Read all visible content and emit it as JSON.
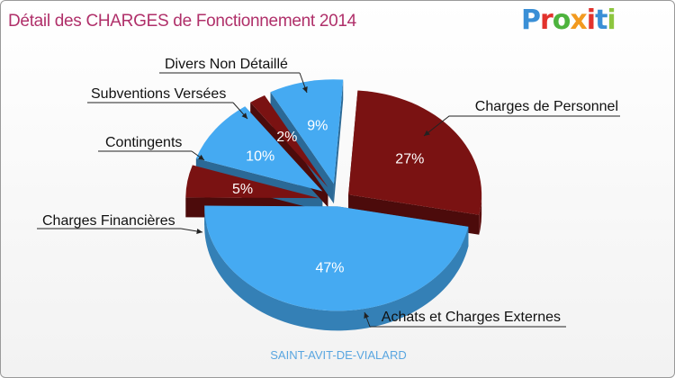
{
  "title": "Détail des CHARGES de Fonctionnement 2014",
  "logo": {
    "text": "Proxiti",
    "letter_colors": [
      "#3a8fd6",
      "#e2322c",
      "#4db33d",
      "#f29a1f",
      "#e2322c",
      "#3a8fd6",
      "#8dc63f"
    ]
  },
  "town": "SAINT-AVIT-DE-VIALARD",
  "colors": {
    "dark": "#7a1212",
    "light": "#45aaf2"
  },
  "chart_data": {
    "type": "pie",
    "title": "Détail des CHARGES de Fonctionnement 2014",
    "slices": [
      {
        "label": "Charges de Personnel",
        "value": 27,
        "pct_label": "27%",
        "color": "#7a1212"
      },
      {
        "label": "Achats et Charges Externes",
        "value": 47,
        "pct_label": "47%",
        "color": "#45aaf2"
      },
      {
        "label": "Charges Financières",
        "value": 5,
        "pct_label": "5%",
        "color": "#7a1212"
      },
      {
        "label": "Contingents",
        "value": 10,
        "pct_label": "10%",
        "color": "#45aaf2"
      },
      {
        "label": "Subventions Versées",
        "value": 2,
        "pct_label": "2%",
        "color": "#7a1212"
      },
      {
        "label": "Divers Non Détaillé",
        "value": 9,
        "pct_label": "9%",
        "color": "#45aaf2"
      }
    ]
  }
}
